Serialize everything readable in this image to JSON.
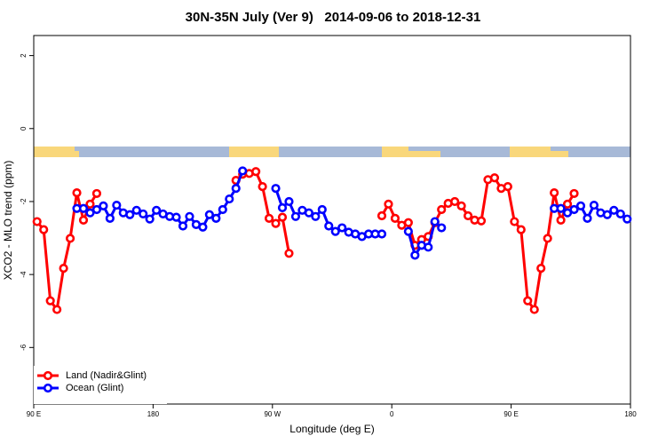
{
  "chart_data": {
    "type": "line",
    "title": "30N-35N July (Ver 9)   2014-09-06 to 2018-12-31",
    "xlabel": "Longitude (deg E)",
    "ylabel": "XCO2 - MLO trend (ppm)",
    "x": [
      92.5,
      97.5,
      102.5,
      107.5,
      112.5,
      117.5,
      122.5,
      127.5,
      132.5,
      137.5,
      142.5,
      147.5,
      152.5,
      157.5,
      162.5,
      167.5,
      172.5,
      177.5,
      182.5,
      187.5,
      192.5,
      197.5,
      202.5,
      207.5,
      212.5,
      217.5,
      222.5,
      227.5,
      232.5,
      237.5,
      242.5,
      247.5,
      252.5,
      257.5,
      262.5,
      267.5,
      272.5,
      277.5,
      282.5,
      287.5,
      292.5,
      297.5,
      302.5,
      307.5,
      312.5,
      317.5,
      322.5,
      327.5,
      332.5,
      337.5,
      342.5,
      347.5,
      352.5,
      357.5,
      362.5,
      367.5,
      372.5,
      377.5,
      382.5,
      387.5,
      392.5,
      397.5,
      402.5,
      407.5,
      412.5,
      417.5,
      422.5,
      427.5,
      432.5,
      437.5,
      442.5,
      447.5,
      452.5,
      457.5,
      462.5,
      467.5,
      472.5,
      477.5,
      482.5,
      487.5,
      492.5,
      497.5,
      502.5,
      507.5,
      512.5,
      517.5,
      522.5,
      527.5,
      532.5,
      537.5
    ],
    "series": [
      {
        "name": "Land (Nadir&Glint)",
        "color": "#ff0000",
        "values": [
          -2.55,
          -2.77,
          -4.72,
          -4.96,
          -3.83,
          -3.01,
          -1.76,
          -2.51,
          -2.07,
          -1.78,
          null,
          null,
          null,
          null,
          null,
          null,
          null,
          null,
          null,
          null,
          null,
          null,
          null,
          null,
          null,
          null,
          null,
          null,
          null,
          null,
          -1.42,
          -1.25,
          -1.23,
          -1.18,
          -1.59,
          -2.46,
          -2.6,
          -2.43,
          -3.42,
          null,
          null,
          null,
          null,
          null,
          null,
          null,
          null,
          null,
          null,
          null,
          null,
          null,
          -2.39,
          -2.07,
          -2.46,
          -2.65,
          -2.58,
          -3.2,
          -3.04,
          -2.96,
          -2.58,
          -2.22,
          -2.05,
          -2.0,
          -2.12,
          -2.39,
          -2.51,
          -2.53,
          -1.4,
          -1.35,
          -1.64,
          -1.59,
          -2.55,
          -2.77,
          -4.72,
          -4.96,
          -3.83,
          -3.01,
          -1.76,
          -2.51,
          -2.07,
          -1.78,
          null,
          null,
          null,
          null,
          null,
          null,
          null,
          null
        ]
      },
      {
        "name": "Ocean (Glint)",
        "color": "#0000ff",
        "values": [
          null,
          null,
          null,
          null,
          null,
          null,
          -2.19,
          -2.19,
          -2.31,
          -2.22,
          -2.12,
          -2.46,
          -2.1,
          -2.31,
          -2.36,
          -2.24,
          -2.34,
          -2.48,
          -2.24,
          -2.34,
          -2.41,
          -2.43,
          -2.67,
          -2.41,
          -2.63,
          -2.7,
          -2.36,
          -2.46,
          -2.22,
          -1.93,
          -1.64,
          -1.16,
          null,
          null,
          null,
          null,
          -1.64,
          -2.17,
          -2.0,
          -2.41,
          -2.24,
          -2.31,
          -2.41,
          -2.22,
          -2.67,
          -2.82,
          -2.72,
          -2.84,
          -2.89,
          -2.96,
          -2.89,
          -2.89,
          -2.89,
          null,
          null,
          null,
          -2.82,
          -3.47,
          -3.2,
          -3.25,
          -2.55,
          -2.72,
          null,
          null,
          null,
          null,
          null,
          null,
          null,
          null,
          null,
          null,
          null,
          null,
          null,
          null,
          null,
          null,
          -2.19,
          -2.19,
          -2.31,
          -2.22,
          -2.12,
          -2.46,
          -2.1,
          -2.31,
          -2.36,
          -2.24,
          -2.34,
          -2.48
        ]
      }
    ],
    "xlim": [
      90,
      540
    ],
    "xticks": [
      {
        "value": 90,
        "label": "90 E"
      },
      180,
      {
        "value": 270,
        "label": "90 W"
      },
      {
        "value": 360,
        "label": "0"
      },
      {
        "value": 450,
        "label": "90 E"
      },
      {
        "value": 540,
        "label": "180"
      }
    ],
    "ylim": [
      -7.55,
      2.55
    ],
    "yticks": [
      2,
      0,
      -2,
      -4,
      -6
    ],
    "legend": "bottom-left"
  }
}
